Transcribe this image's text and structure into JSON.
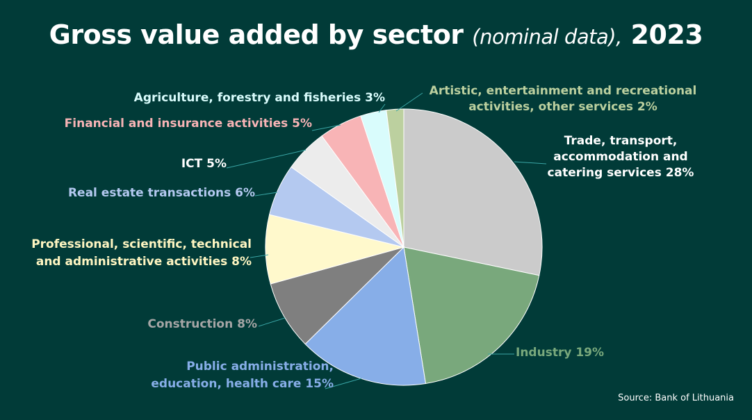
{
  "chart_data": {
    "type": "pie",
    "title": "Gross value added by sector",
    "subtitle": "(nominal data),",
    "year": "2023",
    "source": "Source: Bank of Lithuania",
    "start_angle_deg": 0,
    "slices": [
      {
        "name": "Trade, transport, accommodation and catering services",
        "value": 28,
        "color": "#cbcbcb",
        "label_color": "#ffffff",
        "label_lines": [
          "Trade, transport,",
          "accommodation and",
          "catering services 28%"
        ]
      },
      {
        "name": "Industry",
        "value": 19,
        "color": "#79a87c",
        "label_color": "#79a87c",
        "label_lines": [
          "Industry 19%"
        ]
      },
      {
        "name": "Public administration, education, health care",
        "value": 15,
        "color": "#87aee8",
        "label_color": "#87aee8",
        "label_lines": [
          "Public administration,",
          "education, health care 15%"
        ]
      },
      {
        "name": "Construction",
        "value": 8,
        "color": "#7f7f7f",
        "label_color": "#a6a6a6",
        "label_lines": [
          "Construction 8%"
        ]
      },
      {
        "name": "Professional, scientific, technical and administrative activities",
        "value": 8,
        "color": "#fff9cc",
        "label_color": "#fff6c2",
        "label_lines": [
          "Professional, scientific, technical",
          "and administrative activities 8%"
        ]
      },
      {
        "name": "Real estate transactions",
        "value": 6,
        "color": "#b4c9f0",
        "label_color": "#b4c9f0",
        "label_lines": [
          "Real estate transactions 6%"
        ]
      },
      {
        "name": "ICT",
        "value": 5,
        "color": "#ececec",
        "label_color": "#ffffff",
        "label_lines": [
          "ICT 5%"
        ]
      },
      {
        "name": "Financial and insurance activities",
        "value": 5,
        "color": "#f8b4b6",
        "label_color": "#f8b4b6",
        "label_lines": [
          "Financial and insurance activities 5%"
        ]
      },
      {
        "name": "Agriculture, forestry and fisheries",
        "value": 3,
        "color": "#d9fcfc",
        "label_color": "#d9fcfc",
        "label_lines": [
          "Agriculture, forestry and fisheries 3%"
        ]
      },
      {
        "name": "Artistic, entertainment and recreational activities, other services",
        "value": 2,
        "color": "#bcd09f",
        "label_color": "#bcd09f",
        "label_lines": [
          "Artistic, entertainment and recreational",
          "activities, other services 2%"
        ]
      }
    ]
  }
}
